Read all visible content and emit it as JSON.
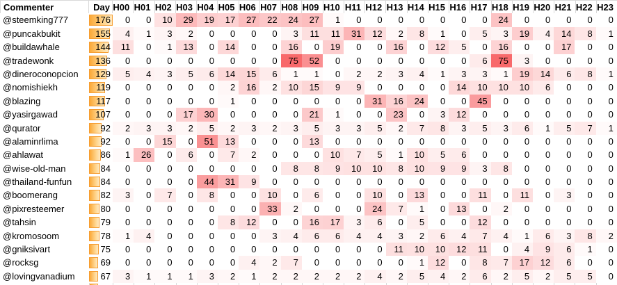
{
  "table": {
    "columns": [
      "Commenter",
      "Day",
      "H00",
      "H01",
      "H02",
      "H03",
      "H04",
      "H05",
      "H06",
      "H07",
      "H08",
      "H09",
      "H10",
      "H11",
      "H12",
      "H13",
      "H14",
      "H15",
      "H16",
      "H17",
      "H18",
      "H19",
      "H20",
      "H21",
      "H22",
      "H23"
    ],
    "rows": [
      {
        "name": "@steemking777",
        "day": 176,
        "values": [
          0,
          0,
          10,
          29,
          19,
          17,
          27,
          22,
          24,
          27,
          1,
          0,
          0,
          0,
          0,
          0,
          0,
          0,
          24,
          0,
          0,
          0,
          0,
          0
        ]
      },
      {
        "name": "@puncakbukit",
        "day": 155,
        "values": [
          4,
          1,
          3,
          2,
          0,
          0,
          0,
          0,
          3,
          11,
          11,
          31,
          12,
          2,
          8,
          1,
          0,
          5,
          3,
          19,
          4,
          14,
          8,
          1
        ]
      },
      {
        "name": "@buildawhale",
        "day": 144,
        "values": [
          11,
          0,
          1,
          13,
          0,
          14,
          0,
          0,
          16,
          0,
          19,
          0,
          0,
          16,
          0,
          12,
          5,
          0,
          16,
          0,
          0,
          17,
          0,
          0
        ]
      },
      {
        "name": "@tradewonk",
        "day": 136,
        "values": [
          0,
          0,
          0,
          0,
          0,
          0,
          0,
          0,
          75,
          52,
          0,
          0,
          0,
          0,
          0,
          0,
          0,
          6,
          75,
          3,
          0,
          0,
          0,
          0
        ]
      },
      {
        "name": "@dineroconopcion",
        "day": 129,
        "values": [
          5,
          4,
          3,
          5,
          6,
          14,
          15,
          6,
          1,
          1,
          0,
          2,
          2,
          3,
          4,
          1,
          3,
          3,
          1,
          19,
          14,
          6,
          8,
          1
        ]
      },
      {
        "name": "@nomishiekh",
        "day": 119,
        "values": [
          0,
          0,
          0,
          0,
          0,
          2,
          16,
          2,
          10,
          15,
          9,
          9,
          0,
          0,
          0,
          0,
          14,
          10,
          10,
          10,
          6,
          0,
          0,
          0
        ]
      },
      {
        "name": "@blazing",
        "day": 117,
        "values": [
          0,
          0,
          0,
          0,
          0,
          1,
          0,
          0,
          0,
          0,
          0,
          0,
          31,
          16,
          24,
          0,
          0,
          45,
          0,
          0,
          0,
          0,
          0,
          0
        ]
      },
      {
        "name": "@yasirgawad",
        "day": 107,
        "values": [
          0,
          0,
          0,
          17,
          30,
          0,
          0,
          0,
          0,
          21,
          1,
          0,
          0,
          23,
          0,
          3,
          12,
          0,
          0,
          0,
          0,
          0,
          0,
          0
        ]
      },
      {
        "name": "@qurator",
        "day": 92,
        "values": [
          2,
          3,
          3,
          2,
          5,
          2,
          3,
          2,
          3,
          5,
          3,
          3,
          5,
          2,
          7,
          8,
          3,
          5,
          3,
          6,
          1,
          5,
          7,
          1
        ]
      },
      {
        "name": "@alaminrlima",
        "day": 92,
        "values": [
          0,
          0,
          15,
          0,
          51,
          13,
          0,
          0,
          0,
          13,
          0,
          0,
          0,
          0,
          0,
          0,
          0,
          0,
          0,
          0,
          0,
          0,
          0,
          0
        ]
      },
      {
        "name": "@ahlawat",
        "day": 86,
        "values": [
          1,
          26,
          0,
          6,
          0,
          7,
          2,
          0,
          0,
          0,
          10,
          7,
          5,
          1,
          10,
          5,
          6,
          0,
          0,
          0,
          0,
          0,
          0,
          0
        ]
      },
      {
        "name": "@wise-old-man",
        "day": 84,
        "values": [
          0,
          0,
          0,
          0,
          0,
          0,
          0,
          0,
          8,
          8,
          9,
          10,
          10,
          8,
          10,
          9,
          9,
          3,
          8,
          0,
          0,
          0,
          0,
          0
        ]
      },
      {
        "name": "@thailand-funfun",
        "day": 84,
        "values": [
          0,
          0,
          0,
          0,
          44,
          31,
          9,
          0,
          0,
          0,
          0,
          0,
          0,
          0,
          0,
          0,
          0,
          0,
          0,
          0,
          0,
          0,
          0,
          0
        ]
      },
      {
        "name": "@boomerang",
        "day": 82,
        "values": [
          3,
          0,
          7,
          0,
          8,
          0,
          0,
          10,
          0,
          6,
          0,
          0,
          10,
          0,
          13,
          0,
          0,
          11,
          0,
          11,
          0,
          3,
          0,
          0
        ]
      },
      {
        "name": "@pixresteemer",
        "day": 80,
        "values": [
          0,
          0,
          0,
          0,
          0,
          0,
          0,
          33,
          2,
          0,
          0,
          0,
          24,
          7,
          1,
          0,
          13,
          0,
          2,
          0,
          0,
          0,
          0,
          0
        ]
      },
      {
        "name": "@tahsin",
        "day": 79,
        "values": [
          0,
          0,
          0,
          0,
          0,
          8,
          12,
          0,
          0,
          16,
          17,
          3,
          6,
          0,
          5,
          0,
          0,
          12,
          0,
          0,
          0,
          0,
          0,
          0
        ]
      },
      {
        "name": "@kromosoom",
        "day": 78,
        "values": [
          1,
          4,
          0,
          0,
          0,
          0,
          0,
          3,
          4,
          6,
          6,
          4,
          4,
          3,
          2,
          6,
          4,
          7,
          4,
          1,
          6,
          3,
          8,
          2
        ]
      },
      {
        "name": "@gniksivart",
        "day": 75,
        "values": [
          0,
          0,
          0,
          0,
          0,
          0,
          0,
          0,
          0,
          0,
          0,
          0,
          0,
          11,
          10,
          10,
          12,
          11,
          0,
          4,
          9,
          6,
          1,
          0
        ]
      },
      {
        "name": "@rocksg",
        "day": 69,
        "values": [
          0,
          0,
          0,
          0,
          0,
          0,
          4,
          2,
          7,
          0,
          0,
          0,
          0,
          0,
          1,
          12,
          0,
          8,
          7,
          17,
          12,
          6,
          0,
          0
        ]
      },
      {
        "name": "@lovingvanadium",
        "day": 67,
        "values": [
          3,
          1,
          1,
          1,
          3,
          2,
          1,
          2,
          2,
          2,
          2,
          2,
          4,
          2,
          5,
          4,
          2,
          6,
          2,
          5,
          2,
          5,
          5,
          0
        ]
      }
    ]
  },
  "scales": {
    "day_max": 176,
    "heat_max": 75
  },
  "colors": {
    "heat_high": "#F8696B",
    "heat_low": "#FFFFFF",
    "bar_fill": "#FBA938",
    "bar_mid": "#FFD791",
    "bar_light": "#FFE9C0",
    "bar_border": "#F69D30",
    "grid": "#D9D9D9",
    "text": "#000000"
  }
}
